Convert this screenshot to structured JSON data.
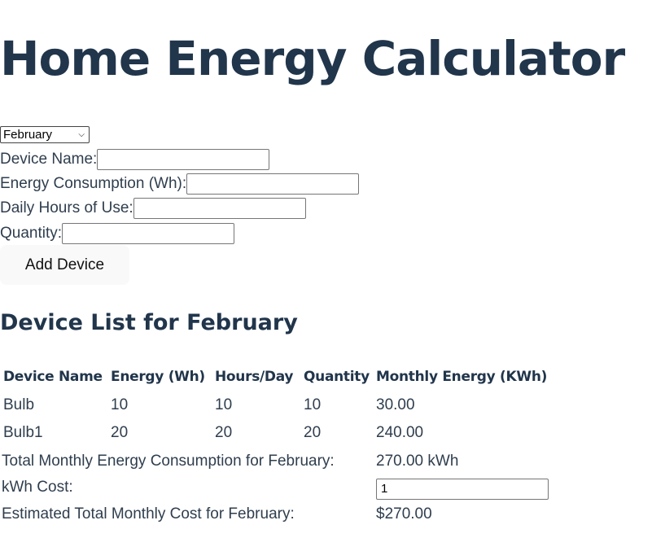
{
  "page": {
    "title": "Home Energy Calculator"
  },
  "month_select": {
    "selected": "February"
  },
  "form": {
    "device_name_label": "Device Name:",
    "energy_label": "Energy Consumption (Wh):",
    "hours_label": "Daily Hours of Use:",
    "quantity_label": "Quantity:",
    "add_button_label": "Add Device"
  },
  "list": {
    "heading": "Device List for February",
    "columns": [
      "Device Name",
      "Energy (Wh)",
      "Hours/Day",
      "Quantity",
      "Monthly Energy (KWh)"
    ],
    "rows": [
      [
        "Bulb",
        "10",
        "10",
        "10",
        "30.00"
      ],
      [
        "Bulb1",
        "20",
        "20",
        "20",
        "240.00"
      ]
    ],
    "total_label": "Total Monthly Energy Consumption for February:",
    "total_value": "270.00 kWh",
    "cost_label": "kWh Cost:",
    "cost_input_value": "1",
    "estimated_label": "Estimated Total Monthly Cost for February:",
    "estimated_value": "$270.00"
  }
}
